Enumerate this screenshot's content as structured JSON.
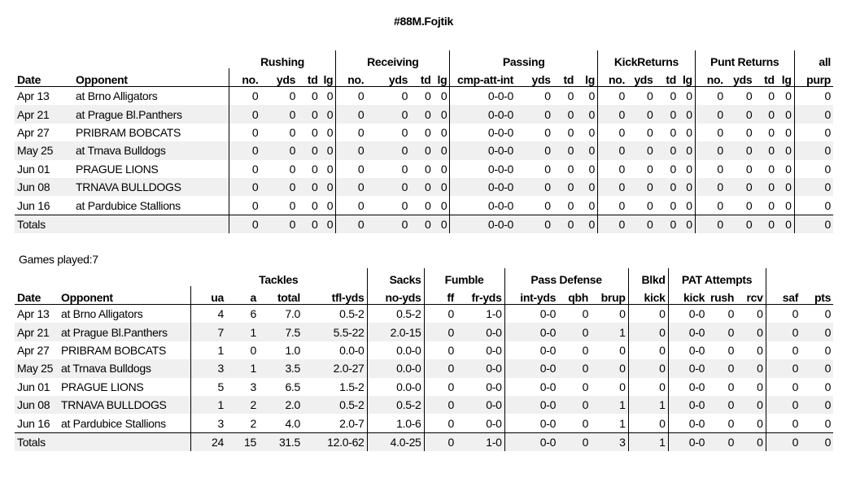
{
  "title": "#88M.Fojtik",
  "games_played": "Games played:7",
  "offense": {
    "groups": [
      "Rushing",
      "Receiving",
      "Passing",
      "KickReturns",
      "Punt Returns",
      "all"
    ],
    "headers": [
      "Date",
      "Opponent",
      "no.",
      "yds",
      "td",
      "lg",
      "no.",
      "yds",
      "td",
      "lg",
      "cmp-att-int",
      "yds",
      "td",
      "lg",
      "no.",
      "yds",
      "td",
      "lg",
      "no.",
      "yds",
      "td",
      "lg",
      "purp"
    ],
    "rows": [
      [
        "Apr 13",
        "at Brno Alligators",
        "0",
        "0",
        "0",
        "0",
        "0",
        "0",
        "0",
        "0",
        "0-0-0",
        "0",
        "0",
        "0",
        "0",
        "0",
        "0",
        "0",
        "0",
        "0",
        "0",
        "0",
        "0"
      ],
      [
        "Apr 21",
        "at Prague Bl.Panthers",
        "0",
        "0",
        "0",
        "0",
        "0",
        "0",
        "0",
        "0",
        "0-0-0",
        "0",
        "0",
        "0",
        "0",
        "0",
        "0",
        "0",
        "0",
        "0",
        "0",
        "0",
        "0"
      ],
      [
        "Apr 27",
        "PRIBRAM BOBCATS",
        "0",
        "0",
        "0",
        "0",
        "0",
        "0",
        "0",
        "0",
        "0-0-0",
        "0",
        "0",
        "0",
        "0",
        "0",
        "0",
        "0",
        "0",
        "0",
        "0",
        "0",
        "0"
      ],
      [
        "May 25",
        "at Trnava Bulldogs",
        "0",
        "0",
        "0",
        "0",
        "0",
        "0",
        "0",
        "0",
        "0-0-0",
        "0",
        "0",
        "0",
        "0",
        "0",
        "0",
        "0",
        "0",
        "0",
        "0",
        "0",
        "0"
      ],
      [
        "Jun 01",
        "PRAGUE LIONS",
        "0",
        "0",
        "0",
        "0",
        "0",
        "0",
        "0",
        "0",
        "0-0-0",
        "0",
        "0",
        "0",
        "0",
        "0",
        "0",
        "0",
        "0",
        "0",
        "0",
        "0",
        "0"
      ],
      [
        "Jun 08",
        "TRNAVA BULLDOGS",
        "0",
        "0",
        "0",
        "0",
        "0",
        "0",
        "0",
        "0",
        "0-0-0",
        "0",
        "0",
        "0",
        "0",
        "0",
        "0",
        "0",
        "0",
        "0",
        "0",
        "0",
        "0"
      ],
      [
        "Jun 16",
        "at Pardubice Stallions",
        "0",
        "0",
        "0",
        "0",
        "0",
        "0",
        "0",
        "0",
        "0-0-0",
        "0",
        "0",
        "0",
        "0",
        "0",
        "0",
        "0",
        "0",
        "0",
        "0",
        "0",
        "0"
      ]
    ],
    "totals": [
      "Totals",
      "",
      "0",
      "0",
      "0",
      "0",
      "0",
      "0",
      "0",
      "0",
      "0-0-0",
      "0",
      "0",
      "0",
      "0",
      "0",
      "0",
      "0",
      "0",
      "0",
      "0",
      "0",
      "0"
    ]
  },
  "defense": {
    "groups": [
      "Tackles",
      "Sacks",
      "Fumble",
      "Pass Defense",
      "Blkd",
      "PAT Attempts"
    ],
    "headers": [
      "Date",
      "Opponent",
      "ua",
      "a",
      "total",
      "tfl-yds",
      "no-yds",
      "ff",
      "fr-yds",
      "int-yds",
      "qbh",
      "brup",
      "kick",
      "kick",
      "rush",
      "rcv",
      "saf",
      "pts"
    ],
    "rows": [
      [
        "Apr 13",
        "at Brno Alligators",
        "4",
        "6",
        "7.0",
        "0.5-2",
        "0.5-2",
        "0",
        "1-0",
        "0-0",
        "0",
        "0",
        "0",
        "0-0",
        "0",
        "0",
        "0",
        "0"
      ],
      [
        "Apr 21",
        "at Prague Bl.Panthers",
        "7",
        "1",
        "7.5",
        "5.5-22",
        "2.0-15",
        "0",
        "0-0",
        "0-0",
        "0",
        "1",
        "0",
        "0-0",
        "0",
        "0",
        "0",
        "0"
      ],
      [
        "Apr 27",
        "PRIBRAM BOBCATS",
        "1",
        "0",
        "1.0",
        "0.0-0",
        "0.0-0",
        "0",
        "0-0",
        "0-0",
        "0",
        "0",
        "0",
        "0-0",
        "0",
        "0",
        "0",
        "0"
      ],
      [
        "May 25",
        "at Trnava Bulldogs",
        "3",
        "1",
        "3.5",
        "2.0-27",
        "0.0-0",
        "0",
        "0-0",
        "0-0",
        "0",
        "0",
        "0",
        "0-0",
        "0",
        "0",
        "0",
        "0"
      ],
      [
        "Jun 01",
        "PRAGUE LIONS",
        "5",
        "3",
        "6.5",
        "1.5-2",
        "0.0-0",
        "0",
        "0-0",
        "0-0",
        "0",
        "0",
        "0",
        "0-0",
        "0",
        "0",
        "0",
        "0"
      ],
      [
        "Jun 08",
        "TRNAVA BULLDOGS",
        "1",
        "2",
        "2.0",
        "0.5-2",
        "0.5-2",
        "0",
        "0-0",
        "0-0",
        "0",
        "1",
        "1",
        "0-0",
        "0",
        "0",
        "0",
        "0"
      ],
      [
        "Jun 16",
        "at Pardubice Stallions",
        "3",
        "2",
        "4.0",
        "2.0-7",
        "1.0-6",
        "0",
        "0-0",
        "0-0",
        "0",
        "1",
        "0",
        "0-0",
        "0",
        "0",
        "0",
        "0"
      ]
    ],
    "totals": [
      "Totals",
      "",
      "24",
      "15",
      "31.5",
      "12.0-62",
      "4.0-25",
      "0",
      "1-0",
      "0-0",
      "0",
      "3",
      "1",
      "0-0",
      "0",
      "0",
      "0",
      "0"
    ]
  }
}
